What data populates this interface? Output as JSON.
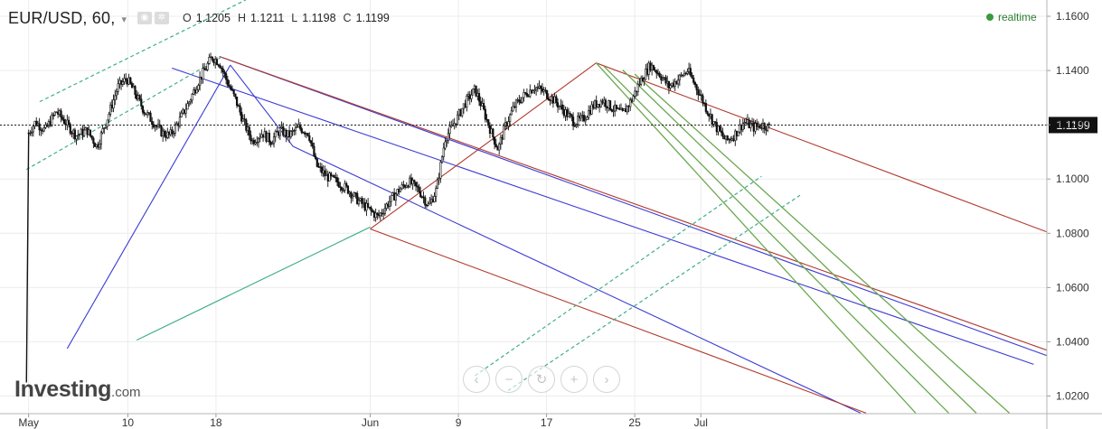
{
  "header": {
    "symbol": "EUR/USD, 60,",
    "caret": "▾",
    "icons": [
      "eye-icon",
      "settings-icon"
    ],
    "ohlc": [
      {
        "key": "O",
        "value": "1.1205"
      },
      {
        "key": "H",
        "value": "1.1211"
      },
      {
        "key": "L",
        "value": "1.1198"
      },
      {
        "key": "C",
        "value": "1.1199"
      }
    ]
  },
  "realtime": {
    "label": "realtime",
    "color": "#3a9a3e"
  },
  "logo": {
    "wordmark": "Investing",
    "suffix": ".com"
  },
  "nav_buttons": [
    {
      "name": "scroll-left-button",
      "glyph": "‹"
    },
    {
      "name": "zoom-out-button",
      "glyph": "−"
    },
    {
      "name": "reset-button",
      "glyph": "↻"
    },
    {
      "name": "zoom-in-button",
      "glyph": "+"
    },
    {
      "name": "scroll-right-button",
      "glyph": "›"
    }
  ],
  "chart_data": {
    "type": "candlestick",
    "y_ticks": [
      "1.1600",
      "1.1400",
      "1.1200",
      "1.1000",
      "1.0800",
      "1.0600",
      "1.0400",
      "1.0200"
    ],
    "y_tick_values": [
      1.16,
      1.14,
      1.12,
      1.1,
      1.08,
      1.06,
      1.04,
      1.02
    ],
    "ylim": [
      1.0135,
      1.166
    ],
    "x_ticks": [
      "May",
      "10",
      "18",
      "Jun",
      "9",
      "17",
      "25",
      "Jul"
    ],
    "x_tick_days": [
      0,
      9,
      17,
      31,
      39,
      47,
      55,
      61
    ],
    "xlim": [
      -2.6,
      92.4
    ],
    "current_price": "1.1199",
    "current_value": 1.1199,
    "price_path": [
      [
        -0.2,
        1.025
      ],
      [
        0,
        1.117
      ],
      [
        0.6,
        1.121
      ],
      [
        1.5,
        1.118
      ],
      [
        2.5,
        1.125
      ],
      [
        3.3,
        1.121
      ],
      [
        4.3,
        1.116
      ],
      [
        5.3,
        1.118
      ],
      [
        6.2,
        1.112
      ],
      [
        7.1,
        1.122
      ],
      [
        8.1,
        1.134
      ],
      [
        8.9,
        1.137
      ],
      [
        9.6,
        1.132
      ],
      [
        10.5,
        1.125
      ],
      [
        11.3,
        1.121
      ],
      [
        12.1,
        1.117
      ],
      [
        12.8,
        1.116
      ],
      [
        13.6,
        1.121
      ],
      [
        14.5,
        1.128
      ],
      [
        15.4,
        1.136
      ],
      [
        16.1,
        1.141
      ],
      [
        16.6,
        1.145
      ],
      [
        17.3,
        1.143
      ],
      [
        18.0,
        1.136
      ],
      [
        18.8,
        1.129
      ],
      [
        19.5,
        1.121
      ],
      [
        20.3,
        1.114
      ],
      [
        21.2,
        1.117
      ],
      [
        22.0,
        1.114
      ],
      [
        22.8,
        1.118
      ],
      [
        23.6,
        1.116
      ],
      [
        24.5,
        1.119
      ],
      [
        25.4,
        1.117
      ],
      [
        26.1,
        1.105
      ],
      [
        27.0,
        1.101
      ],
      [
        28.0,
        1.099
      ],
      [
        29.0,
        1.096
      ],
      [
        29.9,
        1.092
      ],
      [
        30.8,
        1.089
      ],
      [
        31.7,
        1.086
      ],
      [
        32.6,
        1.091
      ],
      [
        33.6,
        1.096
      ],
      [
        34.5,
        1.099
      ],
      [
        35.4,
        1.096
      ],
      [
        36.3,
        1.09
      ],
      [
        37.0,
        1.096
      ],
      [
        37.8,
        1.115
      ],
      [
        38.7,
        1.121
      ],
      [
        39.6,
        1.128
      ],
      [
        40.5,
        1.133
      ],
      [
        41.2,
        1.126
      ],
      [
        42.0,
        1.117
      ],
      [
        42.6,
        1.111
      ],
      [
        43.2,
        1.119
      ],
      [
        44.1,
        1.127
      ],
      [
        45.0,
        1.131
      ],
      [
        45.9,
        1.134
      ],
      [
        46.8,
        1.132
      ],
      [
        47.7,
        1.129
      ],
      [
        48.6,
        1.125
      ],
      [
        49.5,
        1.121
      ],
      [
        50.3,
        1.122
      ],
      [
        51.2,
        1.127
      ],
      [
        52.1,
        1.129
      ],
      [
        53.0,
        1.126
      ],
      [
        53.9,
        1.124
      ],
      [
        54.7,
        1.129
      ],
      [
        55.5,
        1.136
      ],
      [
        56.4,
        1.142
      ],
      [
        57.2,
        1.139
      ],
      [
        58.1,
        1.134
      ],
      [
        59.0,
        1.137
      ],
      [
        59.8,
        1.14
      ],
      [
        60.7,
        1.133
      ],
      [
        61.5,
        1.126
      ],
      [
        62.4,
        1.119
      ],
      [
        63.3,
        1.114
      ],
      [
        64.0,
        1.116
      ],
      [
        64.9,
        1.121
      ],
      [
        65.8,
        1.119
      ],
      [
        66.6,
        1.12
      ],
      [
        67.3,
        1.119
      ]
    ],
    "channels": [
      {
        "name": "blue-pitchfork",
        "color": "#3b3bd4",
        "width": 1.1,
        "lines": [
          [
            [
              3.5,
              1.0375
            ],
            [
              18.3,
              1.142
            ]
          ],
          [
            [
              18.3,
              1.142
            ],
            [
              24.0,
              1.112
            ]
          ],
          [
            [
              13.0,
              1.1409
            ],
            [
              91.2,
              1.0317
            ]
          ],
          [
            [
              24.0,
              1.112
            ],
            [
              75.5,
              1.0137
            ]
          ],
          [
            [
              17.3,
              1.1452
            ],
            [
              92.4,
              1.0349
            ]
          ]
        ]
      },
      {
        "name": "red-pitchfork",
        "color": "#b03a2e",
        "width": 1.1,
        "lines": [
          [
            [
              17.3,
              1.1452
            ],
            [
              92.4,
              1.0369
            ]
          ],
          [
            [
              31.0,
              1.0816
            ],
            [
              76.0,
              1.0137
            ]
          ],
          [
            [
              31.0,
              1.0816
            ],
            [
              51.5,
              1.1428
            ]
          ],
          [
            [
              51.5,
              1.1428
            ],
            [
              92.4,
              1.0805
            ]
          ]
        ]
      },
      {
        "name": "green-fan",
        "color": "#6aa84f",
        "width": 1.3,
        "lines": [
          [
            [
              51.5,
              1.1428
            ],
            [
              80.5,
              1.0137
            ]
          ],
          [
            [
              52.2,
              1.1416
            ],
            [
              83.5,
              1.0137
            ]
          ],
          [
            [
              53.9,
              1.1402
            ],
            [
              86.0,
              1.0137
            ]
          ],
          [
            [
              55.0,
              1.1387
            ],
            [
              89.0,
              1.0137
            ]
          ]
        ]
      },
      {
        "name": "teal-solid",
        "color": "#3fae8a",
        "width": 1.2,
        "lines": [
          [
            [
              9.8,
              1.0406
            ],
            [
              31.0,
              1.0823
            ]
          ]
        ]
      }
    ],
    "dashed_lines": [
      {
        "color": "#3fae8a",
        "points": [
          [
            1.0,
            1.1285
          ],
          [
            19.7,
            1.166
          ]
        ]
      },
      {
        "color": "#3fae8a",
        "points": [
          [
            -0.2,
            1.1035
          ],
          [
            17.6,
            1.1452
          ]
        ]
      },
      {
        "color": "#3fae8a",
        "points": [
          [
            40.5,
            1.0275
          ],
          [
            66.5,
            1.101
          ]
        ]
      },
      {
        "color": "#3fae8a",
        "points": [
          [
            43.5,
            1.022
          ],
          [
            70.0,
            1.094
          ]
        ]
      }
    ]
  }
}
